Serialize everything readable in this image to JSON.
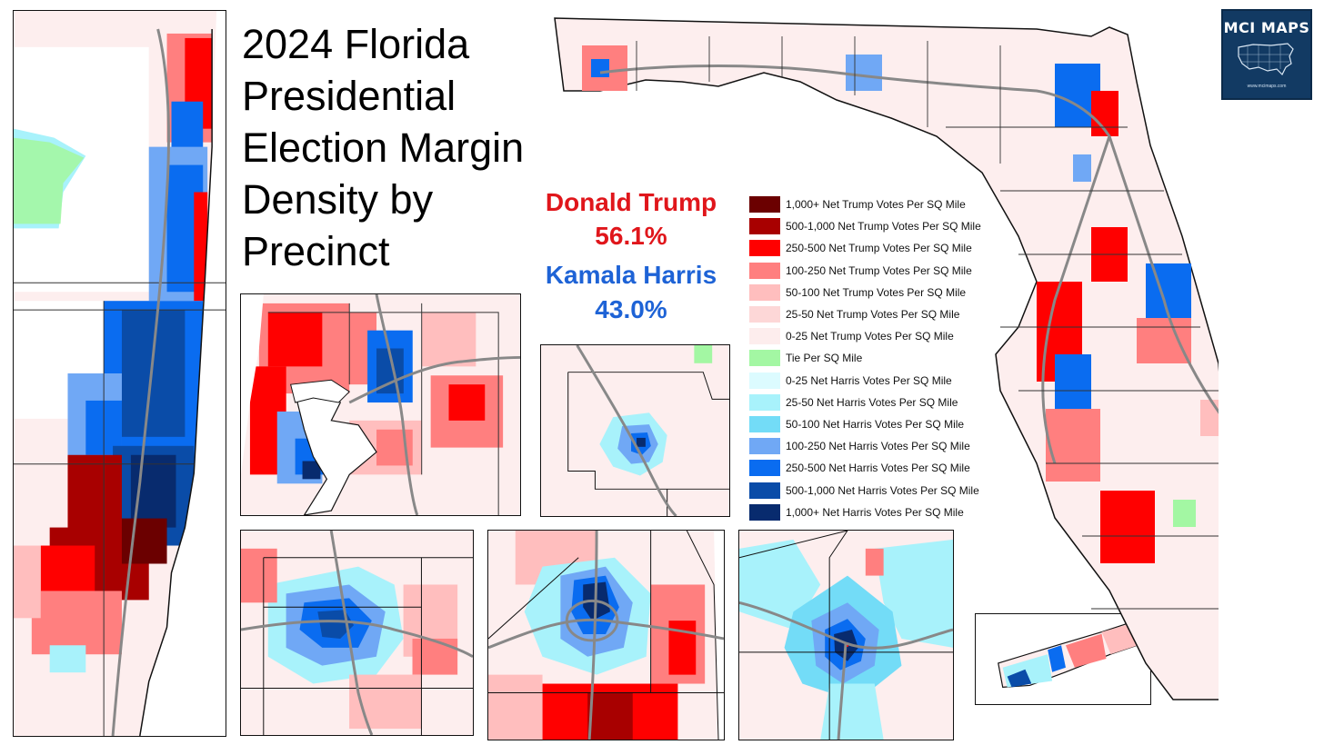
{
  "title": {
    "line1": "2024 Florida",
    "line2": "Presidential",
    "line3": "Election Margin",
    "line4": "Density by",
    "line5": "Precinct"
  },
  "results": {
    "trump": {
      "name": "Donald Trump",
      "pct": "56.1%",
      "color": "#e0161b"
    },
    "harris": {
      "name": "Kamala Harris",
      "pct": "43.0%",
      "color": "#1e63d6"
    }
  },
  "legend": [
    {
      "label": "1,000+ Net Trump Votes Per SQ Mile",
      "color": "#6b0000"
    },
    {
      "label": "500-1,000 Net Trump Votes Per SQ Mile",
      "color": "#a80000"
    },
    {
      "label": "250-500 Net Trump Votes Per SQ Mile",
      "color": "#ff0000"
    },
    {
      "label": "100-250 Net Trump Votes Per SQ Mile",
      "color": "#ff7f7f"
    },
    {
      "label": "50-100 Net Trump Votes Per SQ Mile",
      "color": "#ffbebe"
    },
    {
      "label": "25-50 Net Trump Votes Per SQ Mile",
      "color": "#fdd7d7"
    },
    {
      "label": "0-25 Net Trump Votes Per SQ Mile",
      "color": "#fdeded"
    },
    {
      "label": "Tie Per SQ Mile",
      "color": "#a3f7a3"
    },
    {
      "label": "0-25 Net Harris Votes Per SQ Mile",
      "color": "#dcfbff"
    },
    {
      "label": "25-50 Net Harris Votes Per SQ Mile",
      "color": "#a8f2fb"
    },
    {
      "label": "50-100 Net Harris Votes Per SQ Mile",
      "color": "#73dcf7"
    },
    {
      "label": "100-250 Net Harris Votes Per SQ Mile",
      "color": "#70a8f5"
    },
    {
      "label": "250-500 Net Harris Votes Per SQ Mile",
      "color": "#0a6cf0"
    },
    {
      "label": "500-1,000 Net Harris Votes Per SQ Mile",
      "color": "#0a4ca8"
    },
    {
      "label": "1,000+ Net Harris Votes Per SQ Mile",
      "color": "#082b6e"
    }
  ],
  "logo": {
    "title": "MCI MAPS",
    "url": "www.mcimaps.com"
  }
}
